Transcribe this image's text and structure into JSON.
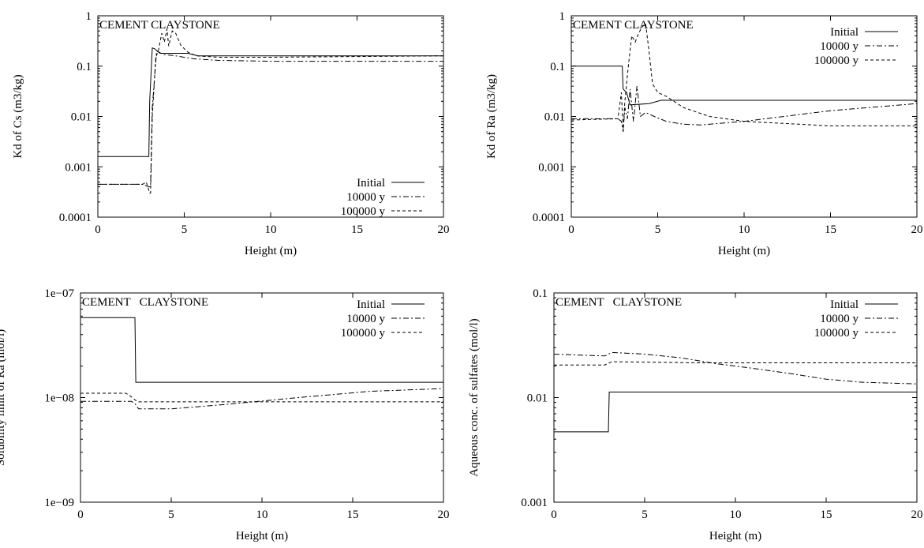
{
  "figure": {
    "panels": [
      {
        "id": "cs",
        "region_label": "CEMENT CLAYSTONE"
      },
      {
        "id": "ra",
        "region_label": "CEMENT CLAYSTONE"
      },
      {
        "id": "sol",
        "region_label": "CEMENT   CLAYSTONE"
      },
      {
        "id": "sulf",
        "region_label": "CEMENT   CLAYSTONE"
      }
    ]
  },
  "chart_data": [
    {
      "type": "line",
      "ylabel": "Kd of Cs (m3/kg)",
      "xlabel": "Height  (m)",
      "xlim": [
        0,
        20
      ],
      "ylim": [
        0.0001,
        1
      ],
      "yscale": "log",
      "x_ticks": [
        "0",
        "5",
        "10",
        "15",
        "20"
      ],
      "y_ticks": [
        "0.0001",
        "0.001",
        "0.01",
        "0.1",
        "1"
      ],
      "annotation": "CEMENT CLAYSTONE",
      "legend_position": "bottom-right",
      "series": [
        {
          "name": "Initial",
          "dash": "solid",
          "x": [
            0,
            2.95,
            3.0,
            3.15,
            3.3,
            3.6,
            5.2,
            5.8,
            20
          ],
          "y": [
            0.0016,
            0.0016,
            0.02,
            0.23,
            0.22,
            0.18,
            0.18,
            0.16,
            0.16
          ]
        },
        {
          "name": "10000 y",
          "dash": "dashdot",
          "x": [
            0,
            2.6,
            2.8,
            2.95,
            3.05,
            3.15,
            3.4,
            3.8,
            4.5,
            5.5,
            7,
            10,
            15,
            20
          ],
          "y": [
            0.00045,
            0.00045,
            0.00042,
            0.0004,
            0.0004,
            0.015,
            0.2,
            0.17,
            0.16,
            0.14,
            0.13,
            0.125,
            0.125,
            0.125
          ]
        },
        {
          "name": "100000 y",
          "dash": "dashed",
          "x": [
            0,
            2.6,
            2.8,
            3.0,
            3.05,
            3.15,
            3.35,
            3.5,
            3.7,
            3.85,
            4.0,
            4.1,
            4.3,
            4.5,
            4.8,
            5.2,
            5.7,
            7,
            10,
            15,
            20
          ],
          "y": [
            0.00045,
            0.00045,
            0.0005,
            0.0003,
            0.0003,
            0.01,
            0.15,
            0.2,
            0.45,
            0.3,
            0.55,
            0.25,
            0.5,
            0.45,
            0.26,
            0.19,
            0.16,
            0.15,
            0.15,
            0.155,
            0.16
          ]
        }
      ]
    },
    {
      "type": "line",
      "ylabel": "Kd of Ra (m3/kg)",
      "xlabel": "Height  (m)",
      "xlim": [
        0,
        20
      ],
      "ylim": [
        0.0001,
        1
      ],
      "yscale": "log",
      "x_ticks": [
        "0",
        "5",
        "10",
        "15",
        "20"
      ],
      "y_ticks": [
        "0.0001",
        "0.001",
        "0.01",
        "0.1",
        "1"
      ],
      "annotation": "CEMENT CLAYSTONE",
      "legend_position": "top-right",
      "series": [
        {
          "name": "Initial",
          "dash": "solid",
          "x": [
            0,
            2.95,
            3.0,
            3.2,
            3.4,
            4.5,
            5.2,
            20
          ],
          "y": [
            0.1,
            0.1,
            0.035,
            0.03,
            0.017,
            0.018,
            0.021,
            0.021
          ]
        },
        {
          "name": "10000 y",
          "dash": "dashdot",
          "x": [
            0,
            2.7,
            2.9,
            3.0,
            3.1,
            3.25,
            3.4,
            3.6,
            3.8,
            4.0,
            4.3,
            4.8,
            5.5,
            6.5,
            7.5,
            10,
            15,
            20
          ],
          "y": [
            0.009,
            0.009,
            0.008,
            0.005,
            0.015,
            0.009,
            0.035,
            0.008,
            0.04,
            0.01,
            0.012,
            0.01,
            0.008,
            0.007,
            0.0068,
            0.008,
            0.013,
            0.018
          ]
        },
        {
          "name": "100000 y",
          "dash": "dashed",
          "x": [
            0,
            2.7,
            2.9,
            3.0,
            3.1,
            3.3,
            3.5,
            3.7,
            3.9,
            4.1,
            4.3,
            4.5,
            4.7,
            5.0,
            5.5,
            6.5,
            8,
            10,
            15,
            20
          ],
          "y": [
            0.0085,
            0.009,
            0.03,
            0.005,
            0.02,
            0.1,
            0.4,
            0.3,
            0.45,
            0.6,
            0.7,
            0.2,
            0.045,
            0.03,
            0.025,
            0.015,
            0.01,
            0.008,
            0.0065,
            0.0065
          ]
        }
      ]
    },
    {
      "type": "line",
      "ylabel": "Solubility limit of Ra (mol/l)",
      "xlabel": "Height  (m)",
      "xlim": [
        0,
        20
      ],
      "ylim": [
        1e-09,
        1e-07
      ],
      "yscale": "log",
      "x_ticks": [
        "0",
        "5",
        "10",
        "15",
        "20"
      ],
      "y_ticks": [
        "1e−09",
        "1e−08",
        "1e−07"
      ],
      "annotation": "CEMENT   CLAYSTONE",
      "legend_position": "top-right",
      "series": [
        {
          "name": "Initial",
          "dash": "solid",
          "x": [
            0,
            3.0,
            3.05,
            20
          ],
          "y": [
            5.8e-08,
            5.8e-08,
            1.4e-08,
            1.4e-08
          ]
        },
        {
          "name": "10000 y",
          "dash": "dashdot",
          "x": [
            0,
            2.5,
            2.8,
            3.0,
            3.2,
            5,
            8,
            12,
            16,
            20
          ],
          "y": [
            9.2e-09,
            9.2e-09,
            9.2e-09,
            8.8e-09,
            7.8e-09,
            7.8e-09,
            8.6e-09,
            1e-08,
            1.15e-08,
            1.22e-08
          ]
        },
        {
          "name": "100000 y",
          "dash": "dashed",
          "x": [
            0,
            2.5,
            2.8,
            3.0,
            3.2,
            20
          ],
          "y": [
            1.1e-08,
            1.1e-08,
            1.02e-08,
            9.5e-09,
            9.1e-09,
            9.1e-09
          ]
        }
      ]
    },
    {
      "type": "line",
      "ylabel": "Aqueous conc. of sulfates (mol/l)",
      "xlabel": "Height  (m)",
      "xlim": [
        0,
        20
      ],
      "ylim": [
        0.001,
        0.1
      ],
      "yscale": "log",
      "x_ticks": [
        "0",
        "5",
        "10",
        "15",
        "20"
      ],
      "y_ticks": [
        "0.001",
        "0.01",
        "0.1"
      ],
      "annotation": "CEMENT   CLAYSTONE",
      "legend_position": "top-right",
      "series": [
        {
          "name": "Initial",
          "dash": "solid",
          "x": [
            0,
            3.0,
            3.05,
            20
          ],
          "y": [
            0.0047,
            0.0047,
            0.0113,
            0.0113
          ]
        },
        {
          "name": "10000 y",
          "dash": "dashdot",
          "x": [
            0,
            2.8,
            3.2,
            5,
            7,
            9,
            11,
            13,
            15,
            17,
            20
          ],
          "y": [
            0.026,
            0.025,
            0.027,
            0.026,
            0.024,
            0.021,
            0.019,
            0.017,
            0.015,
            0.014,
            0.0135
          ]
        },
        {
          "name": "100000 y",
          "dash": "dashed",
          "x": [
            0,
            2.8,
            3.2,
            8,
            20
          ],
          "y": [
            0.0205,
            0.0205,
            0.022,
            0.0215,
            0.0215
          ]
        }
      ]
    }
  ]
}
